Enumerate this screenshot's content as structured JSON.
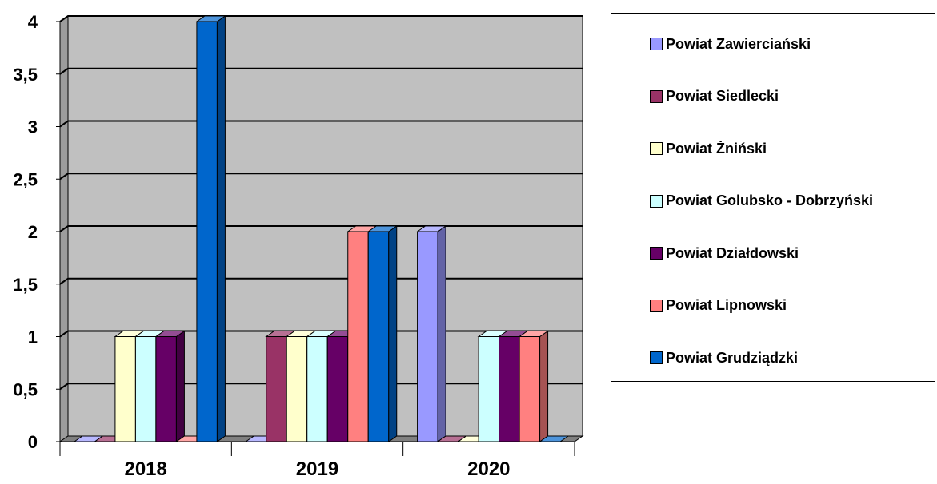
{
  "chart_data": {
    "type": "bar",
    "categories": [
      "2018",
      "2019",
      "2020"
    ],
    "ylim": [
      0,
      4
    ],
    "yticks": [
      "0",
      "0,5",
      "1",
      "1,5",
      "2",
      "2,5",
      "3",
      "3,5",
      "4"
    ],
    "grid": true,
    "legend_position": "right",
    "series": [
      {
        "name": "Powiat Zawierciański",
        "color": "#9999FF",
        "values": [
          0,
          0,
          2
        ]
      },
      {
        "name": "Powiat Siedlecki",
        "color": "#993366",
        "values": [
          0,
          1,
          0
        ]
      },
      {
        "name": "Powiat Żniński",
        "color": "#FFFFCC",
        "values": [
          1,
          1,
          0
        ]
      },
      {
        "name": "Powiat Golubsko - Dobrzyński",
        "color": "#CCFFFF",
        "values": [
          1,
          1,
          1
        ]
      },
      {
        "name": "Powiat Działdowski",
        "color": "#660066",
        "values": [
          1,
          1,
          1
        ]
      },
      {
        "name": "Powiat Lipnowski",
        "color": "#FF8080",
        "values": [
          0,
          2,
          1
        ]
      },
      {
        "name": "Powiat Grudziądzki",
        "color": "#0066CC",
        "values": [
          4,
          2,
          0
        ]
      }
    ]
  }
}
